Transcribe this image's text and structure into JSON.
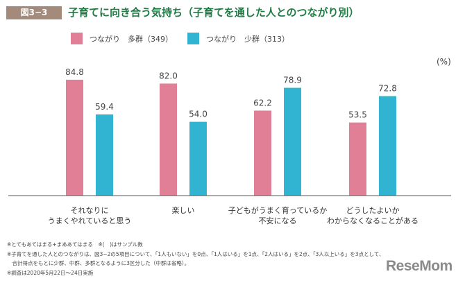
{
  "header": {
    "figure_label": "図3−3",
    "title": "子育てに向き合う気持ち（子育てを通した人とのつながり別）"
  },
  "chart_data": {
    "type": "bar",
    "title": "子育てに向き合う気持ち（子育てを通した人とのつながり別）",
    "unit": "(%)",
    "categories": [
      "それなりに\nうまくやれていると思う",
      "楽しい",
      "子どもがうまく育っているか\n不安になる",
      "どうしたよいか\nわからなくなることがある"
    ],
    "series": [
      {
        "name": "つながり　多群（349）",
        "color": "#e17f97",
        "values": [
          84.8,
          82.0,
          62.2,
          53.5
        ]
      },
      {
        "name": "つながり　少群（313）",
        "color": "#30b4d2",
        "values": [
          59.4,
          54.0,
          78.9,
          72.8
        ]
      }
    ],
    "ylim": [
      0,
      100
    ],
    "grid": false,
    "legend": "top"
  },
  "notes": [
    "※とてもあてはまる+まああてはまる　※(　)はサンプル数",
    "※子育てを通した人とのつながりは、図3−2の5項目について、「1人もいない」を0点、「1人はいる」を1点、「2人はいる」を2点、「3人以上いる」を3点として、",
    "　合計得点をもとに少群、中群、多群となるように3区分した（中群は省略）。",
    "※調査は2020年5月22日〜24日実施"
  ],
  "logo": "ReseMom"
}
